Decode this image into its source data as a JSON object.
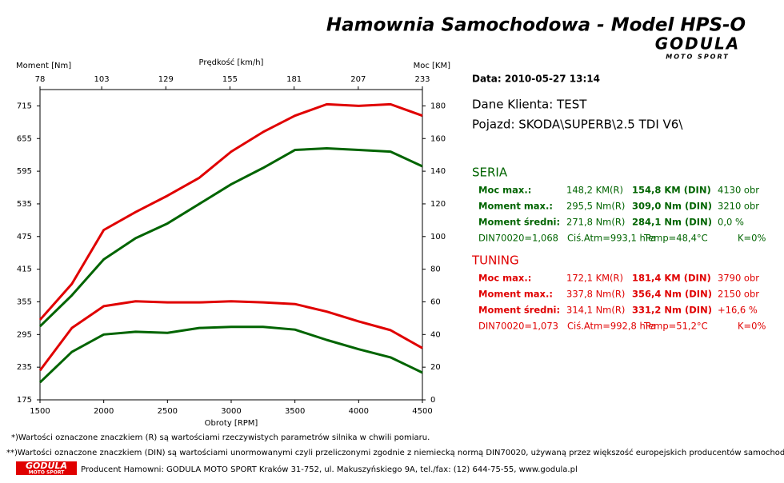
{
  "header": {
    "title": "Hamownia Samochodowa   -   Model HPS-O",
    "logo": "GODULA",
    "logo_sub": "MOTO SPORT"
  },
  "info": {
    "date": "Data: 2010-05-27  13:14",
    "client": "Dane Klienta: TEST",
    "vehicle": "Pojazd: SKODA\\SUPERB\\2.5 TDI V6\\"
  },
  "seria": {
    "title": "SERIA",
    "color": "#006400",
    "rows": [
      [
        "Moc max.:",
        "148,2 KM(R)",
        "154,8 KM (DIN)",
        "4130 obr"
      ],
      [
        "Moment max.:",
        "295,5 Nm(R)",
        "309,0 Nm (DIN)",
        "3210 obr"
      ],
      [
        "Moment średni:",
        "271,8 Nm(R)",
        "284,1 Nm (DIN)",
        "0,0 %"
      ]
    ],
    "din": [
      "DIN70020=1,068",
      "Ciś.Atm=993,1 hPa",
      "Temp=48,4°C",
      "K=0%"
    ]
  },
  "tuning": {
    "title": "TUNING",
    "color": "#e00000",
    "rows": [
      [
        "Moc max.:",
        "172,1 KM(R)",
        "181,4 KM (DIN)",
        "3790 obr"
      ],
      [
        "Moment max.:",
        "337,8 Nm(R)",
        "356,4 Nm (DIN)",
        "2150 obr"
      ],
      [
        "Moment średni:",
        "314,1 Nm(R)",
        "331,2 Nm (DIN)",
        "+16,6 %"
      ]
    ],
    "din": [
      "DIN70020=1,073",
      "Ciś.Atm=992,8 hPa",
      "Temp=51,2°C",
      "K=0%"
    ]
  },
  "footer": {
    "note1": "*)Wartości oznaczone znaczkiem (R) są wartościami rzeczywistych parametrów silnika w chwili pomiaru.",
    "note2": "**)Wartości oznaczone znaczkiem (DIN) są wartościami unormowanymi czyli przeliczonymi zgodnie z niemiecką normą DIN70020, używaną przez większość europejskich producentów samochodów.",
    "logo": "GODULA",
    "logo_sub": "MOTO SPORT",
    "producer": "Producent Hamowni: GODULA MOTO SPORT Kraków 31-752, ul. Makuszyńskiego 9A, tel./fax: (12) 644-75-55, www.godula.pl"
  },
  "chart_data": {
    "type": "line",
    "ylabel": "Moment [Nm]",
    "y2label": "Moc [KM]",
    "xlabel": "Obroty [RPM]",
    "x2label": "Prędkość [km/h]",
    "x": [
      1500,
      1750,
      2000,
      2250,
      2500,
      2750,
      3000,
      3250,
      3500,
      3750,
      4000,
      4250,
      4500
    ],
    "xlim": [
      1500,
      4500
    ],
    "xticks": [
      1500,
      2000,
      2500,
      3000,
      3500,
      4000,
      4500
    ],
    "x2lim": [
      78,
      233
    ],
    "x2ticks": [
      78,
      103,
      129,
      155,
      181,
      207,
      233
    ],
    "ylim": [
      175,
      745
    ],
    "yticks": [
      175,
      235,
      295,
      355,
      415,
      475,
      535,
      595,
      655,
      715
    ],
    "y2lim": [
      0,
      190
    ],
    "y2ticks": [
      0,
      20,
      40,
      60,
      80,
      100,
      120,
      140,
      160,
      180
    ],
    "series": [
      {
        "color": "#e00000",
        "axis": "y2",
        "values": [
          49,
          71,
          104,
          115,
          125,
          136,
          152,
          164,
          174,
          181,
          180,
          181,
          174
        ]
      },
      {
        "color": "#006400",
        "axis": "y2",
        "values": [
          45,
          64,
          86,
          99,
          108,
          120,
          132,
          142,
          153,
          154,
          153,
          152,
          143
        ]
      },
      {
        "color": "#e00000",
        "values": [
          229,
          307,
          347,
          356,
          354,
          354,
          356,
          354,
          351,
          337,
          319,
          303,
          270
        ]
      },
      {
        "color": "#006400",
        "values": [
          207,
          263,
          295,
          300,
          298,
          307,
          309,
          309,
          304,
          285,
          268,
          253,
          225
        ]
      }
    ]
  }
}
